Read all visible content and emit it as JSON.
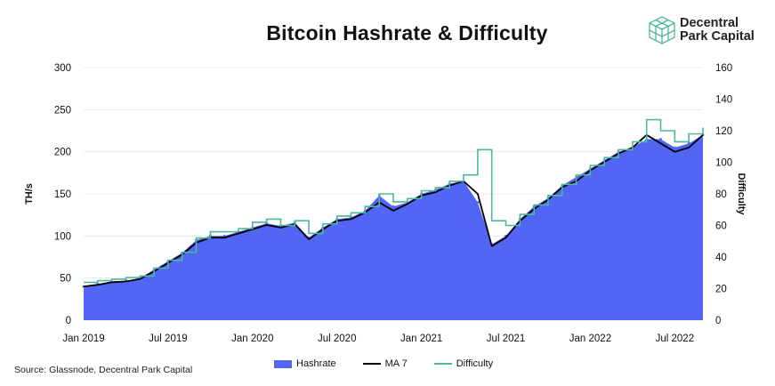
{
  "title": "Bitcoin Hashrate & Difficulty",
  "brand": {
    "line1": "Decentral",
    "line2": "Park Capital",
    "logo_icon": "cube-logo-icon",
    "color": "#4fb79a"
  },
  "source": "Source: Glassnode, Decentral Park Capital",
  "chart_data": {
    "type": "area",
    "title": "Bitcoin Hashrate & Difficulty",
    "x_start": "2019-01",
    "x_end": "2022-09",
    "x_ticks": [
      "Jan 2019",
      "Jul 2019",
      "Jan 2020",
      "Jul 2020",
      "Jan 2021",
      "Jul 2021",
      "Jan 2022",
      "Jul 2022"
    ],
    "y_left": {
      "label": "TH/s",
      "range": [
        0,
        300
      ],
      "ticks": [
        "0",
        "50",
        "100",
        "150",
        "200",
        "250",
        "300"
      ]
    },
    "y_right": {
      "label": "Difficulty",
      "range": [
        0,
        160
      ],
      "ticks": [
        "0",
        "20",
        "40",
        "60",
        "80",
        "100",
        "120",
        "140",
        "160"
      ]
    },
    "grid": true,
    "legend_position": "bottom",
    "series": [
      {
        "name": "Hashrate",
        "axis": "left",
        "kind": "area",
        "color": "#5266f5",
        "x": [
          "2019-01",
          "2019-02",
          "2019-03",
          "2019-04",
          "2019-05",
          "2019-06",
          "2019-07",
          "2019-08",
          "2019-09",
          "2019-10",
          "2019-11",
          "2019-12",
          "2020-01",
          "2020-02",
          "2020-03",
          "2020-04",
          "2020-05",
          "2020-06",
          "2020-07",
          "2020-08",
          "2020-09",
          "2020-10",
          "2020-11",
          "2020-12",
          "2021-01",
          "2021-02",
          "2021-03",
          "2021-04",
          "2021-05",
          "2021-06",
          "2021-07",
          "2021-08",
          "2021-09",
          "2021-10",
          "2021-11",
          "2021-12",
          "2022-01",
          "2022-02",
          "2022-03",
          "2022-04",
          "2022-05",
          "2022-06",
          "2022-07",
          "2022-08",
          "2022-09"
        ],
        "values": [
          40,
          43,
          46,
          47,
          50,
          60,
          70,
          80,
          95,
          100,
          100,
          105,
          110,
          115,
          112,
          116,
          98,
          110,
          120,
          122,
          130,
          148,
          135,
          140,
          150,
          155,
          162,
          165,
          140,
          90,
          100,
          120,
          135,
          145,
          160,
          170,
          180,
          190,
          200,
          205,
          215,
          215,
          205,
          210,
          220
        ]
      },
      {
        "name": "MA 7",
        "axis": "left",
        "kind": "line",
        "color": "#000000",
        "x": [
          "2019-01",
          "2019-02",
          "2019-03",
          "2019-04",
          "2019-05",
          "2019-06",
          "2019-07",
          "2019-08",
          "2019-09",
          "2019-10",
          "2019-11",
          "2019-12",
          "2020-01",
          "2020-02",
          "2020-03",
          "2020-04",
          "2020-05",
          "2020-06",
          "2020-07",
          "2020-08",
          "2020-09",
          "2020-10",
          "2020-11",
          "2020-12",
          "2021-01",
          "2021-02",
          "2021-03",
          "2021-04",
          "2021-05",
          "2021-06",
          "2021-07",
          "2021-08",
          "2021-09",
          "2021-10",
          "2021-11",
          "2021-12",
          "2022-01",
          "2022-02",
          "2022-03",
          "2022-04",
          "2022-05",
          "2022-06",
          "2022-07",
          "2022-08",
          "2022-09"
        ],
        "values": [
          40,
          42,
          45,
          46,
          49,
          58,
          68,
          78,
          92,
          98,
          98,
          103,
          108,
          113,
          110,
          114,
          96,
          108,
          118,
          120,
          128,
          140,
          130,
          138,
          148,
          152,
          160,
          165,
          150,
          88,
          98,
          118,
          132,
          143,
          158,
          165,
          178,
          188,
          198,
          205,
          220,
          210,
          200,
          205,
          220
        ]
      },
      {
        "name": "Difficulty",
        "axis": "right",
        "kind": "step",
        "color": "#4fb79a",
        "x": [
          "2019-01",
          "2019-02",
          "2019-03",
          "2019-04",
          "2019-05",
          "2019-06",
          "2019-07",
          "2019-08",
          "2019-09",
          "2019-10",
          "2019-11",
          "2019-12",
          "2020-01",
          "2020-02",
          "2020-03",
          "2020-04",
          "2020-05",
          "2020-06",
          "2020-07",
          "2020-08",
          "2020-09",
          "2020-10",
          "2020-11",
          "2020-12",
          "2021-01",
          "2021-02",
          "2021-03",
          "2021-04",
          "2021-05",
          "2021-06",
          "2021-07",
          "2021-08",
          "2021-09",
          "2021-10",
          "2021-11",
          "2021-12",
          "2022-01",
          "2022-02",
          "2022-03",
          "2022-04",
          "2022-05",
          "2022-06",
          "2022-07",
          "2022-08",
          "2022-09"
        ],
        "values": [
          24,
          25,
          26,
          27,
          28,
          33,
          38,
          43,
          52,
          56,
          56,
          58,
          62,
          64,
          60,
          63,
          55,
          61,
          66,
          68,
          72,
          80,
          75,
          77,
          82,
          84,
          88,
          92,
          108,
          63,
          60,
          67,
          73,
          79,
          86,
          92,
          98,
          103,
          108,
          113,
          127,
          120,
          113,
          118,
          122
        ]
      }
    ]
  }
}
